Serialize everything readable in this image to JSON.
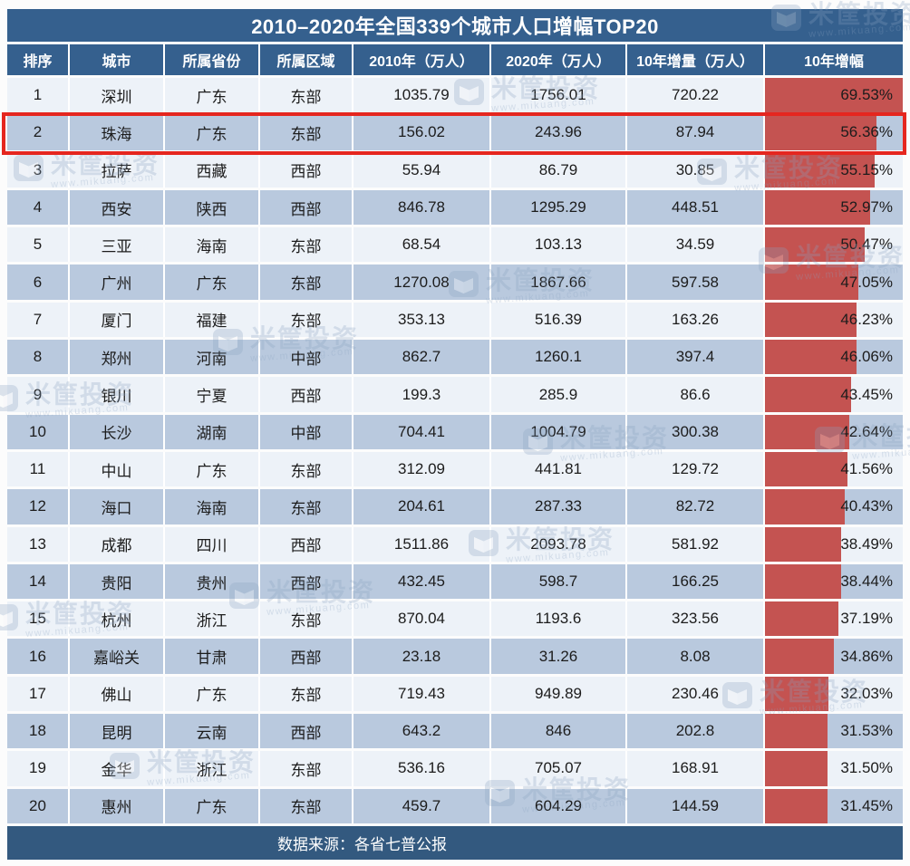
{
  "title": "2010–2020年全国339个城市人口增幅TOP20",
  "footer": {
    "source": "数据来源：各省七普公报"
  },
  "watermark": {
    "brand": "米筐投资",
    "url": "www.mikuang.com",
    "icon": "book-icon"
  },
  "colors": {
    "header_navy": "#35608e",
    "footer_navy": "#33597f",
    "row_light": "#edf2f8",
    "row_blue": "#b9c9de",
    "bar_red": "#c45351",
    "highlight_red": "#e5261f",
    "text_dark": "#1c1c1c"
  },
  "chart_data": {
    "type": "table",
    "title": "2010–2020年全国339个城市人口增幅TOP20",
    "headers": [
      "排序",
      "城市",
      "所属省份",
      "所属区域",
      "2010年（万人）",
      "2020年（万人）",
      "10年增量（万人）",
      "10年增幅"
    ],
    "bar_column": "10年增幅",
    "bar_scale_max_pct": 69.53,
    "highlighted_rank": 2,
    "rows": [
      {
        "rank": "1",
        "city": "深圳",
        "province": "广东",
        "region": "东部",
        "y2010": "1035.79",
        "y2020": "1756.01",
        "delta": "720.22",
        "growth": "69.53%"
      },
      {
        "rank": "2",
        "city": "珠海",
        "province": "广东",
        "region": "东部",
        "y2010": "156.02",
        "y2020": "243.96",
        "delta": "87.94",
        "growth": "56.36%"
      },
      {
        "rank": "3",
        "city": "拉萨",
        "province": "西藏",
        "region": "西部",
        "y2010": "55.94",
        "y2020": "86.79",
        "delta": "30.85",
        "growth": "55.15%"
      },
      {
        "rank": "4",
        "city": "西安",
        "province": "陕西",
        "region": "西部",
        "y2010": "846.78",
        "y2020": "1295.29",
        "delta": "448.51",
        "growth": "52.97%"
      },
      {
        "rank": "5",
        "city": "三亚",
        "province": "海南",
        "region": "东部",
        "y2010": "68.54",
        "y2020": "103.13",
        "delta": "34.59",
        "growth": "50.47%"
      },
      {
        "rank": "6",
        "city": "广州",
        "province": "广东",
        "region": "东部",
        "y2010": "1270.08",
        "y2020": "1867.66",
        "delta": "597.58",
        "growth": "47.05%"
      },
      {
        "rank": "7",
        "city": "厦门",
        "province": "福建",
        "region": "东部",
        "y2010": "353.13",
        "y2020": "516.39",
        "delta": "163.26",
        "growth": "46.23%"
      },
      {
        "rank": "8",
        "city": "郑州",
        "province": "河南",
        "region": "中部",
        "y2010": "862.7",
        "y2020": "1260.1",
        "delta": "397.4",
        "growth": "46.06%"
      },
      {
        "rank": "9",
        "city": "银川",
        "province": "宁夏",
        "region": "西部",
        "y2010": "199.3",
        "y2020": "285.9",
        "delta": "86.6",
        "growth": "43.45%"
      },
      {
        "rank": "10",
        "city": "长沙",
        "province": "湖南",
        "region": "中部",
        "y2010": "704.41",
        "y2020": "1004.79",
        "delta": "300.38",
        "growth": "42.64%"
      },
      {
        "rank": "11",
        "city": "中山",
        "province": "广东",
        "region": "东部",
        "y2010": "312.09",
        "y2020": "441.81",
        "delta": "129.72",
        "growth": "41.56%"
      },
      {
        "rank": "12",
        "city": "海口",
        "province": "海南",
        "region": "东部",
        "y2010": "204.61",
        "y2020": "287.33",
        "delta": "82.72",
        "growth": "40.43%"
      },
      {
        "rank": "13",
        "city": "成都",
        "province": "四川",
        "region": "西部",
        "y2010": "1511.86",
        "y2020": "2093.78",
        "delta": "581.92",
        "growth": "38.49%"
      },
      {
        "rank": "14",
        "city": "贵阳",
        "province": "贵州",
        "region": "西部",
        "y2010": "432.45",
        "y2020": "598.7",
        "delta": "166.25",
        "growth": "38.44%"
      },
      {
        "rank": "15",
        "city": "杭州",
        "province": "浙江",
        "region": "东部",
        "y2010": "870.04",
        "y2020": "1193.6",
        "delta": "323.56",
        "growth": "37.19%"
      },
      {
        "rank": "16",
        "city": "嘉峪关",
        "province": "甘肃",
        "region": "西部",
        "y2010": "23.18",
        "y2020": "31.26",
        "delta": "8.08",
        "growth": "34.86%"
      },
      {
        "rank": "17",
        "city": "佛山",
        "province": "广东",
        "region": "东部",
        "y2010": "719.43",
        "y2020": "949.89",
        "delta": "230.46",
        "growth": "32.03%"
      },
      {
        "rank": "18",
        "city": "昆明",
        "province": "云南",
        "region": "西部",
        "y2010": "643.2",
        "y2020": "846",
        "delta": "202.8",
        "growth": "31.53%"
      },
      {
        "rank": "19",
        "city": "金华",
        "province": "浙江",
        "region": "东部",
        "y2010": "536.16",
        "y2020": "705.07",
        "delta": "168.91",
        "growth": "31.50%"
      },
      {
        "rank": "20",
        "city": "惠州",
        "province": "广东",
        "region": "东部",
        "y2010": "459.7",
        "y2020": "604.29",
        "delta": "144.59",
        "growth": "31.45%"
      }
    ]
  }
}
